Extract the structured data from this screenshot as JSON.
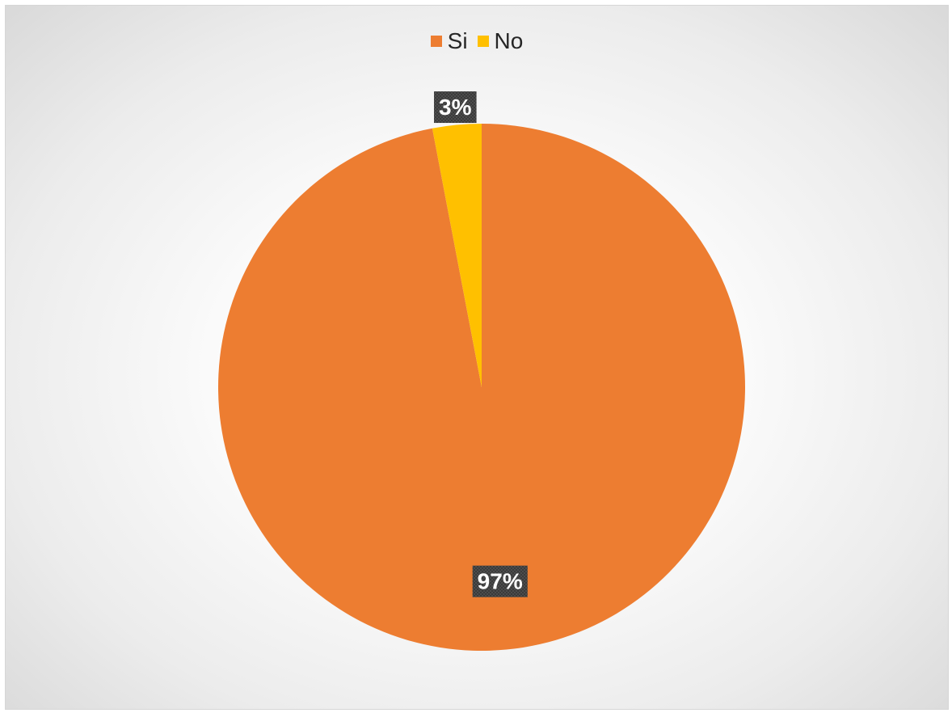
{
  "chart_data": {
    "type": "pie",
    "title": "",
    "categories": [
      "Si",
      "No"
    ],
    "values": [
      97,
      3
    ],
    "data_labels": [
      "97%",
      "3%"
    ],
    "colors": [
      "#ED7D31",
      "#FFC000"
    ],
    "legend_position": "top",
    "start_angle_deg": 0,
    "direction": "clockwise"
  }
}
